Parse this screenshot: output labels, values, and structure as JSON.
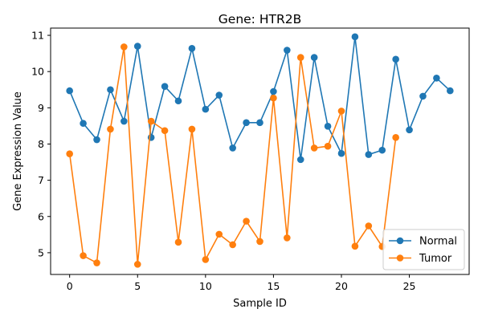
{
  "chart_data": {
    "type": "line",
    "title": "Gene: HTR2B",
    "xlabel": "Sample ID",
    "ylabel": "Gene Expression Value",
    "xlim": [
      -1.4,
      29.4
    ],
    "ylim": [
      4.4,
      11.2
    ],
    "xticks": [
      0,
      5,
      10,
      15,
      20,
      25
    ],
    "yticks": [
      5,
      6,
      7,
      8,
      9,
      10,
      11
    ],
    "grid": false,
    "legend_position": "lower-right",
    "series": [
      {
        "name": "Normal",
        "color": "#1f77b4",
        "x": [
          0,
          1,
          2,
          3,
          4,
          5,
          6,
          7,
          8,
          9,
          10,
          11,
          12,
          13,
          14,
          15,
          16,
          17,
          18,
          19,
          20,
          21,
          22,
          23,
          24,
          25,
          26,
          27,
          28
        ],
        "y": [
          9.47,
          8.57,
          8.12,
          9.5,
          8.63,
          10.7,
          8.18,
          9.59,
          9.19,
          10.64,
          8.96,
          9.35,
          7.89,
          8.59,
          8.59,
          9.45,
          10.59,
          7.57,
          10.39,
          8.49,
          7.74,
          10.96,
          7.71,
          7.83,
          10.34,
          8.39,
          9.32,
          9.82,
          9.47
        ]
      },
      {
        "name": "Tumor",
        "color": "#ff7f0e",
        "x": [
          0,
          1,
          2,
          3,
          4,
          5,
          6,
          7,
          8,
          9,
          10,
          11,
          12,
          13,
          14,
          15,
          16,
          17,
          18,
          19,
          20,
          21,
          22,
          23,
          24
        ],
        "y": [
          7.73,
          4.92,
          4.72,
          8.41,
          10.68,
          4.68,
          8.63,
          8.37,
          5.29,
          8.41,
          4.81,
          5.51,
          5.22,
          5.87,
          5.31,
          9.27,
          5.41,
          10.39,
          7.89,
          7.94,
          8.91,
          5.18,
          5.74,
          5.17,
          8.18
        ]
      }
    ]
  }
}
